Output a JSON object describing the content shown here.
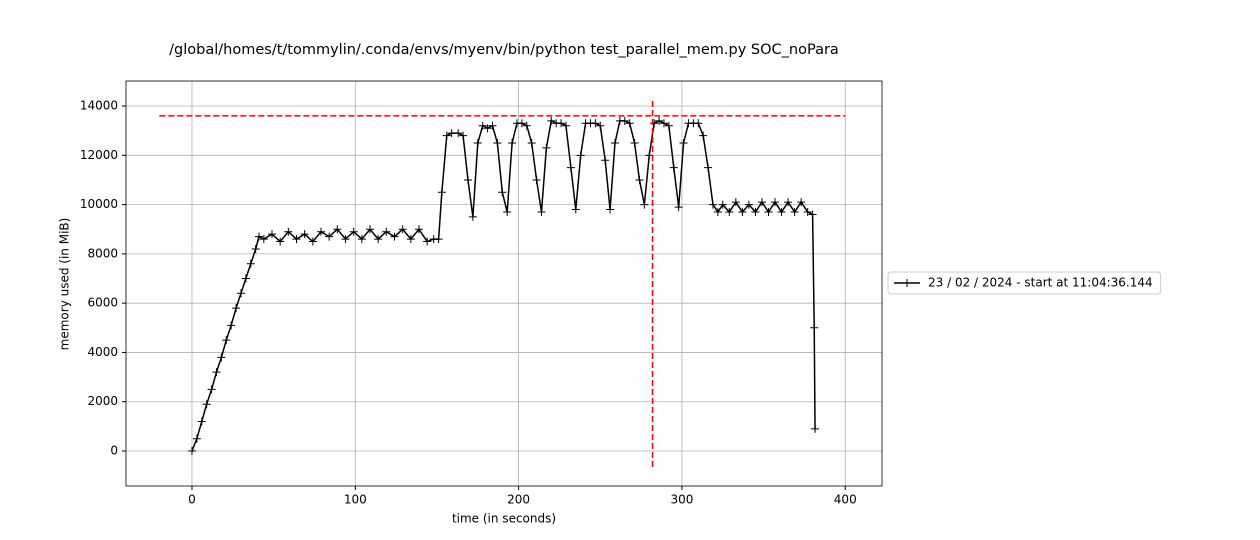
{
  "chart_data": {
    "type": "line",
    "title": "/global/homes/t/tommylin/.conda/envs/myenv/bin/python test_parallel_mem.py SOC_noPara",
    "x_label": "time (in seconds)",
    "y_label": "memory used (in MiB)",
    "xlim": [
      -40.4,
      422.5
    ],
    "ylim": [
      -1420,
      15016
    ],
    "xticks": [
      0,
      100,
      200,
      300,
      400
    ],
    "yticks": [
      0,
      2000,
      4000,
      6000,
      8000,
      10000,
      12000,
      14000
    ],
    "grid": true,
    "legend": "right",
    "series": [
      {
        "name": "23 / 02 / 2024 - start at 11:04:36.144",
        "color": "#000000",
        "x": [
          0,
          3,
          6,
          9,
          12,
          15,
          18,
          21,
          24,
          27,
          30,
          33,
          36,
          39,
          41,
          44,
          49,
          54,
          59,
          64,
          69,
          74,
          79,
          84,
          89,
          94,
          99,
          104,
          109,
          114,
          119,
          124,
          129,
          134,
          139,
          144,
          148,
          151,
          153,
          156,
          159,
          163,
          166,
          169,
          172,
          175,
          178,
          181,
          184,
          187,
          190,
          193,
          196,
          199,
          202,
          205,
          208,
          211,
          214,
          217,
          220,
          223,
          226,
          229,
          232,
          235,
          238,
          241,
          244,
          247,
          250,
          253,
          256,
          259,
          262,
          265,
          268,
          271,
          274,
          277,
          280,
          283,
          286,
          289,
          292,
          295,
          298,
          301,
          304,
          307,
          310,
          313,
          316,
          319,
          322,
          325,
          329,
          333,
          337,
          341,
          345,
          349,
          353,
          357,
          361,
          365,
          369,
          373,
          377,
          380,
          381,
          381.5
        ],
        "values": [
          0,
          500,
          1200,
          1900,
          2500,
          3200,
          3800,
          4500,
          5100,
          5800,
          6400,
          7000,
          7600,
          8200,
          8700,
          8600,
          8800,
          8500,
          8900,
          8600,
          8800,
          8500,
          8900,
          8700,
          9000,
          8600,
          8900,
          8600,
          9000,
          8600,
          8900,
          8700,
          9000,
          8600,
          9000,
          8500,
          8600,
          8600,
          10500,
          12800,
          12900,
          12900,
          12800,
          11000,
          9500,
          12500,
          13200,
          13100,
          13200,
          12500,
          10500,
          9700,
          12500,
          13300,
          13300,
          13200,
          12500,
          11000,
          9700,
          12300,
          13400,
          13300,
          13300,
          13200,
          11500,
          9800,
          12000,
          13300,
          13300,
          13300,
          13200,
          11800,
          9800,
          12500,
          13400,
          13400,
          13300,
          12500,
          11000,
          10000,
          12000,
          13300,
          13400,
          13300,
          13200,
          11500,
          9900,
          12500,
          13300,
          13300,
          13300,
          12800,
          11500,
          10000,
          9700,
          10000,
          9700,
          10100,
          9700,
          10000,
          9700,
          10100,
          9700,
          10100,
          9700,
          10100,
          9700,
          10100,
          9700,
          9600,
          5000,
          900
        ]
      }
    ],
    "hline": {
      "y": 13600,
      "xmin": -20,
      "xmax": 400,
      "color": "#ff0000"
    },
    "vline": {
      "x": 282,
      "ymin": -650,
      "ymax": 14250,
      "color": "#ff0000"
    }
  }
}
